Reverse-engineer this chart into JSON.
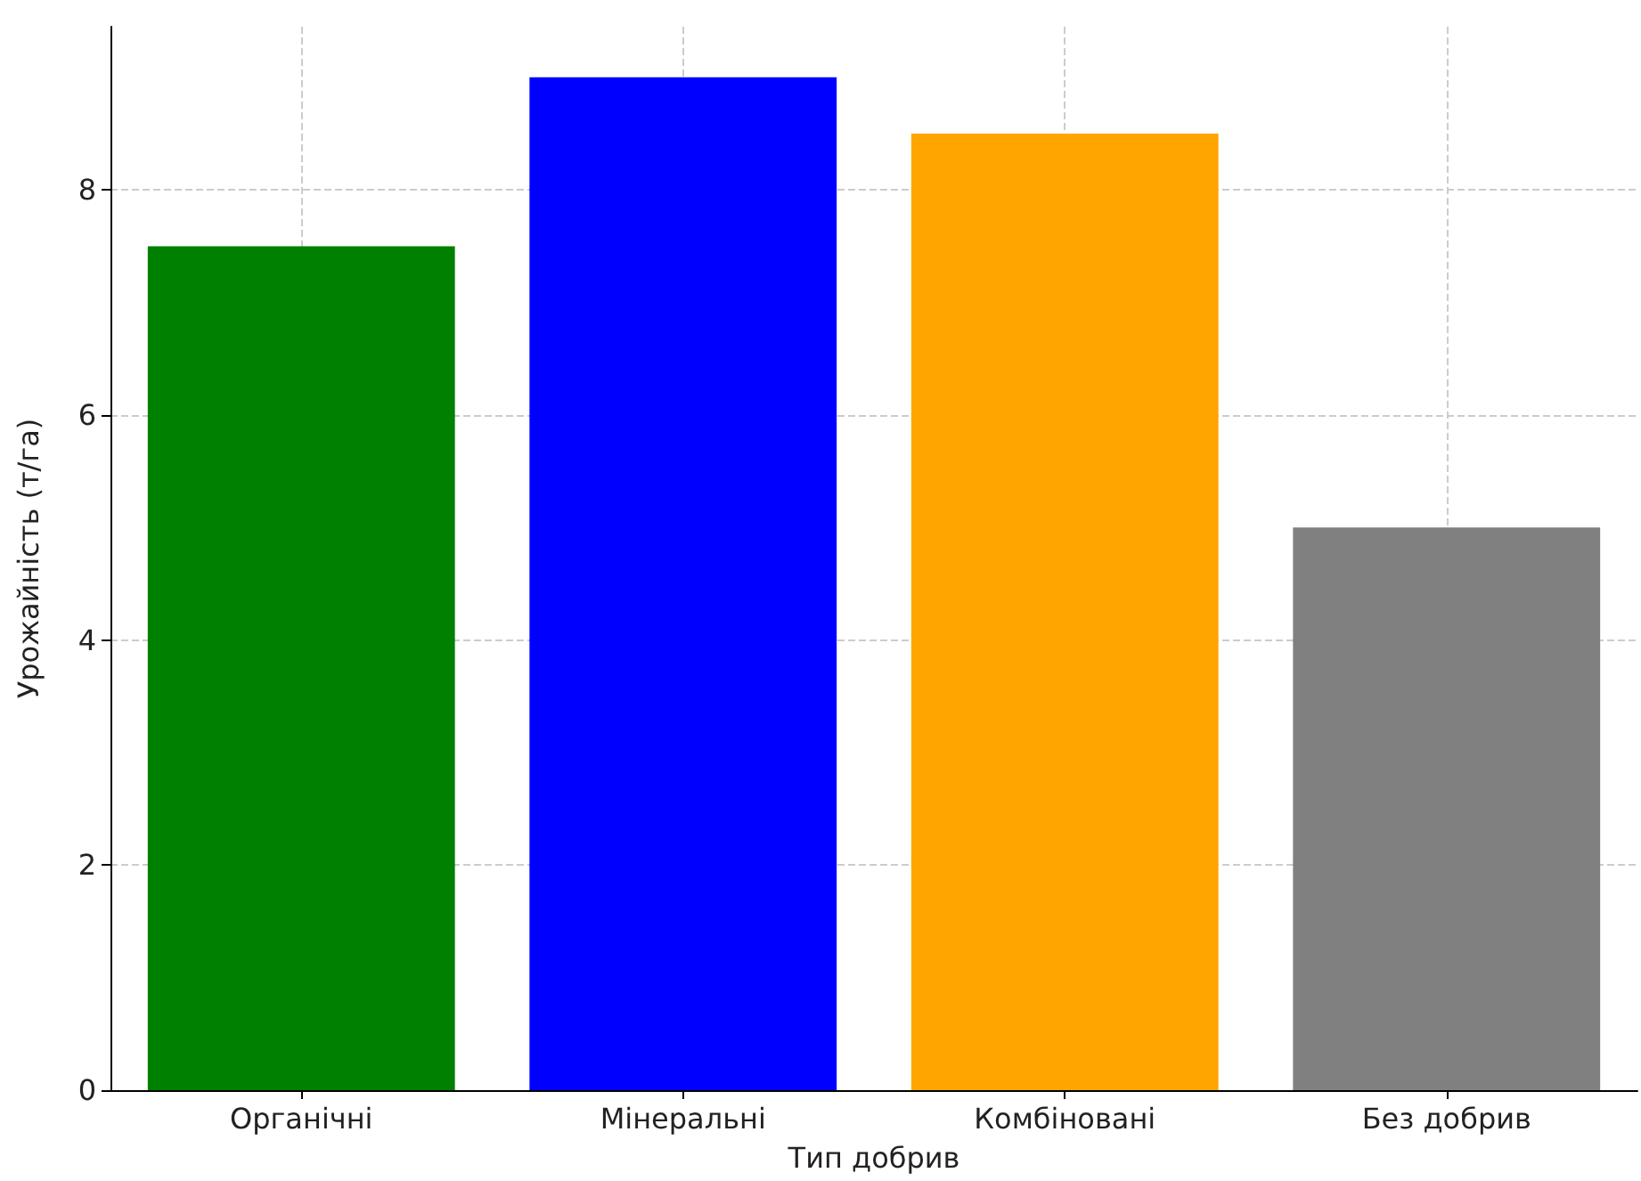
{
  "chart_data": {
    "type": "bar",
    "xlabel": "Тип добрив",
    "ylabel": "Урожайність (т/га)",
    "categories": [
      "Органічні",
      "Мінеральні",
      "Комбіновані",
      "Без добрив"
    ],
    "values": [
      7.5,
      9,
      8.5,
      5
    ],
    "colors": [
      "#008000",
      "#0000ff",
      "#ffa500",
      "#808080"
    ],
    "ylim": [
      0,
      9.45
    ],
    "yticks": [
      0,
      2,
      4,
      6,
      8
    ],
    "grid": true
  }
}
